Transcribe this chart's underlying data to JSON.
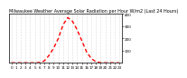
{
  "title": "Milwaukee Weather Average Solar Radiation per Hour W/m2 (Last 24 Hours)",
  "x_values": [
    0,
    1,
    2,
    3,
    4,
    5,
    6,
    7,
    8,
    9,
    10,
    11,
    12,
    13,
    14,
    15,
    16,
    17,
    18,
    19,
    20,
    21,
    22,
    23
  ],
  "y_values": [
    0,
    0,
    0,
    0,
    0,
    0,
    2,
    15,
    60,
    120,
    200,
    310,
    370,
    340,
    270,
    180,
    90,
    35,
    8,
    1,
    0,
    0,
    0,
    0
  ],
  "line_color": "#ff0000",
  "background_color": "#ffffff",
  "grid_color": "#bbbbbb",
  "ylim": [
    0,
    400
  ],
  "xlim": [
    -0.5,
    23.5
  ],
  "ytick_values": [
    100,
    200,
    300,
    400
  ],
  "xtick_values": [
    0,
    1,
    2,
    3,
    4,
    5,
    6,
    7,
    8,
    9,
    10,
    11,
    12,
    13,
    14,
    15,
    16,
    17,
    18,
    19,
    20,
    21,
    22,
    23
  ],
  "title_fontsize": 3.5,
  "tick_fontsize": 3.0,
  "line_width": 1.0,
  "dash_style": [
    3,
    2
  ]
}
